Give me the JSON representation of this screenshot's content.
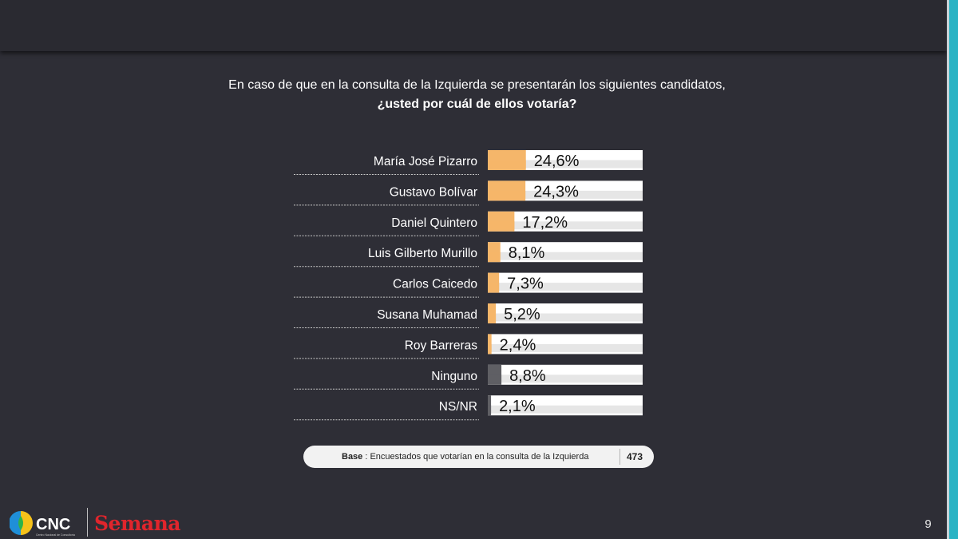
{
  "question": {
    "line1": "En caso de que en la consulta de la Izquierda se presentarán los siguientes candidatos,",
    "line2": "¿usted por cuál de ellos votaría?"
  },
  "chart_data": {
    "type": "bar",
    "orientation": "horizontal",
    "categories": [
      "María José Pizarro",
      "Gustavo Bolívar",
      "Daniel Quintero",
      "Luis Gilberto Murillo",
      "Carlos Caicedo",
      "Susana Muhamad",
      "Roy Barreras",
      "Ninguno",
      "NS/NR"
    ],
    "values": [
      24.6,
      24.3,
      17.2,
      8.1,
      7.3,
      5.2,
      2.4,
      8.8,
      2.1
    ],
    "labels": [
      "24,6%",
      "24,3%",
      "17,2%",
      "8,1%",
      "7,3%",
      "5,2%",
      "2,4%",
      "8,8%",
      "2,1%"
    ],
    "bar_colors": [
      "#f5b66a",
      "#f5b66a",
      "#f5b66a",
      "#f5b66a",
      "#f5b66a",
      "#f5b66a",
      "#f5b66a",
      "#5f5f64",
      "#5f5f64"
    ],
    "xlim": [
      0,
      100
    ],
    "title": "",
    "xlabel": "",
    "ylabel": "",
    "grid": false,
    "legend": "none"
  },
  "base": {
    "label": "Base",
    "text": "Encuestados que votarían en la consulta de la Izquierda",
    "n": "473"
  },
  "logos": {
    "cnc": "CNC",
    "cnc_sub": "Centro Nacional de Consultoría",
    "semana": "Semana"
  },
  "page_number": "9",
  "colors": {
    "background": "#2e2e36",
    "accent": "#2ab3c4",
    "candidate_bar": "#f5b66a",
    "neutral_bar": "#5f5f64",
    "track": "#ffffff"
  }
}
